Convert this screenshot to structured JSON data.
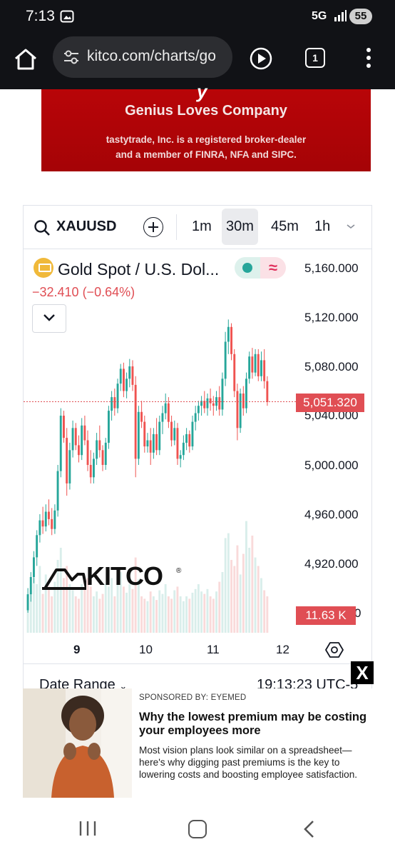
{
  "status_bar": {
    "time": "7:13",
    "network": "5G",
    "battery": "55"
  },
  "browser": {
    "url": "kitco.com/charts/go",
    "tab_count": "1"
  },
  "ad_banner": {
    "brand_fragment": "y",
    "headline": "Genius Loves Company",
    "line1": "tastytrade, Inc. is a registered broker-dealer",
    "line2": "and a member of FINRA, NFA and SIPC."
  },
  "chart_widget": {
    "symbol": "XAUUSD",
    "timeframes": [
      "1m",
      "30m",
      "45m",
      "1h"
    ],
    "active_timeframe": "30m",
    "instrument": "Gold Spot / U.S. Dol...",
    "change": "−32.410 (−0.64%)",
    "current_price": "5,051.320",
    "volume_badge": "11.63 K",
    "watermark": "KITCO",
    "date_range_label": "Date Range",
    "timestamp": "19:13:23 UTC-5"
  },
  "chart_data": {
    "type": "candlestick",
    "y_ticks": [
      "5,160.000",
      "5,120.000",
      "5,080.000",
      "5,040.000",
      "5,000.000",
      "4,960.000",
      "4,920.000",
      "4,880.000"
    ],
    "visible_partial_tick": "0",
    "ylim": [
      4880,
      5160
    ],
    "x_ticks": [
      "9",
      "10",
      "11",
      "12"
    ],
    "current_price": 5051.32,
    "colors": {
      "up": "#26a69a",
      "down": "#ef5350",
      "price_line": "#e04e54"
    },
    "candles": [
      {
        "o": 4882,
        "h": 4900,
        "l": 4880,
        "c": 4895
      },
      {
        "o": 4895,
        "h": 4913,
        "l": 4889,
        "c": 4909
      },
      {
        "o": 4909,
        "h": 4930,
        "l": 4904,
        "c": 4925
      },
      {
        "o": 4925,
        "h": 4947,
        "l": 4918,
        "c": 4943
      },
      {
        "o": 4943,
        "h": 4960,
        "l": 4937,
        "c": 4955
      },
      {
        "o": 4955,
        "h": 4966,
        "l": 4944,
        "c": 4950
      },
      {
        "o": 4950,
        "h": 4968,
        "l": 4946,
        "c": 4962
      },
      {
        "o": 4962,
        "h": 4972,
        "l": 4951,
        "c": 4956
      },
      {
        "o": 4956,
        "h": 4965,
        "l": 4943,
        "c": 4948
      },
      {
        "o": 4948,
        "h": 4968,
        "l": 4944,
        "c": 4963
      },
      {
        "o": 4963,
        "h": 5000,
        "l": 4958,
        "c": 4995
      },
      {
        "o": 4995,
        "h": 5046,
        "l": 4990,
        "c": 5040
      },
      {
        "o": 5040,
        "h": 5044,
        "l": 5018,
        "c": 5022
      },
      {
        "o": 5022,
        "h": 5030,
        "l": 4975,
        "c": 4985
      },
      {
        "o": 4985,
        "h": 5018,
        "l": 4980,
        "c": 5012
      },
      {
        "o": 5012,
        "h": 5036,
        "l": 5006,
        "c": 5030
      },
      {
        "o": 5030,
        "h": 5034,
        "l": 5012,
        "c": 5016
      },
      {
        "o": 5016,
        "h": 5024,
        "l": 5002,
        "c": 5008
      },
      {
        "o": 5008,
        "h": 5038,
        "l": 5004,
        "c": 5032
      },
      {
        "o": 5032,
        "h": 5040,
        "l": 5016,
        "c": 5020
      },
      {
        "o": 5020,
        "h": 5028,
        "l": 4995,
        "c": 5000
      },
      {
        "o": 5000,
        "h": 5012,
        "l": 4985,
        "c": 4990
      },
      {
        "o": 4990,
        "h": 5010,
        "l": 4985,
        "c": 5005
      },
      {
        "o": 5005,
        "h": 5026,
        "l": 5000,
        "c": 5020
      },
      {
        "o": 5020,
        "h": 5032,
        "l": 5006,
        "c": 5012
      },
      {
        "o": 5012,
        "h": 5016,
        "l": 4995,
        "c": 5000
      },
      {
        "o": 5000,
        "h": 5022,
        "l": 4996,
        "c": 5018
      },
      {
        "o": 5018,
        "h": 5048,
        "l": 5013,
        "c": 5044
      },
      {
        "o": 5044,
        "h": 5060,
        "l": 5036,
        "c": 5055
      },
      {
        "o": 5055,
        "h": 5062,
        "l": 5040,
        "c": 5046
      },
      {
        "o": 5046,
        "h": 5070,
        "l": 5042,
        "c": 5066
      },
      {
        "o": 5066,
        "h": 5082,
        "l": 5060,
        "c": 5078
      },
      {
        "o": 5078,
        "h": 5083,
        "l": 5055,
        "c": 5060
      },
      {
        "o": 5060,
        "h": 5075,
        "l": 5054,
        "c": 5070
      },
      {
        "o": 5070,
        "h": 5086,
        "l": 5063,
        "c": 5080
      },
      {
        "o": 5080,
        "h": 5085,
        "l": 5060,
        "c": 5065
      },
      {
        "o": 5065,
        "h": 5072,
        "l": 4990,
        "c": 5005
      },
      {
        "o": 5005,
        "h": 5048,
        "l": 5000,
        "c": 5043
      },
      {
        "o": 5043,
        "h": 5052,
        "l": 5030,
        "c": 5035
      },
      {
        "o": 5035,
        "h": 5040,
        "l": 5010,
        "c": 5015
      },
      {
        "o": 5015,
        "h": 5026,
        "l": 5010,
        "c": 5020
      },
      {
        "o": 5020,
        "h": 5030,
        "l": 5000,
        "c": 5010
      },
      {
        "o": 5010,
        "h": 5030,
        "l": 5005,
        "c": 5025
      },
      {
        "o": 5025,
        "h": 5038,
        "l": 5008,
        "c": 5012
      },
      {
        "o": 5012,
        "h": 5040,
        "l": 5008,
        "c": 5035
      },
      {
        "o": 5035,
        "h": 5048,
        "l": 5025,
        "c": 5042
      },
      {
        "o": 5042,
        "h": 5058,
        "l": 5037,
        "c": 5050
      },
      {
        "o": 5050,
        "h": 5055,
        "l": 5030,
        "c": 5035
      },
      {
        "o": 5035,
        "h": 5040,
        "l": 5015,
        "c": 5020
      },
      {
        "o": 5020,
        "h": 5036,
        "l": 5016,
        "c": 5030
      },
      {
        "o": 5030,
        "h": 5034,
        "l": 5000,
        "c": 5005
      },
      {
        "o": 5005,
        "h": 5012,
        "l": 4998,
        "c": 5008
      },
      {
        "o": 5008,
        "h": 5024,
        "l": 5004,
        "c": 5018
      },
      {
        "o": 5018,
        "h": 5030,
        "l": 5012,
        "c": 5025
      },
      {
        "o": 5025,
        "h": 5028,
        "l": 5010,
        "c": 5015
      },
      {
        "o": 5015,
        "h": 5040,
        "l": 5012,
        "c": 5035
      },
      {
        "o": 5035,
        "h": 5048,
        "l": 5028,
        "c": 5042
      },
      {
        "o": 5042,
        "h": 5052,
        "l": 5036,
        "c": 5048
      },
      {
        "o": 5048,
        "h": 5056,
        "l": 5040,
        "c": 5052
      },
      {
        "o": 5052,
        "h": 5060,
        "l": 5042,
        "c": 5046
      },
      {
        "o": 5046,
        "h": 5058,
        "l": 5040,
        "c": 5054
      },
      {
        "o": 5054,
        "h": 5062,
        "l": 5044,
        "c": 5050
      },
      {
        "o": 5050,
        "h": 5056,
        "l": 5040,
        "c": 5048
      },
      {
        "o": 5048,
        "h": 5060,
        "l": 5044,
        "c": 5055
      },
      {
        "o": 5055,
        "h": 5064,
        "l": 5040,
        "c": 5045
      },
      {
        "o": 5045,
        "h": 5075,
        "l": 5040,
        "c": 5070
      },
      {
        "o": 5070,
        "h": 5108,
        "l": 5064,
        "c": 5100
      },
      {
        "o": 5100,
        "h": 5118,
        "l": 5090,
        "c": 5112
      },
      {
        "o": 5112,
        "h": 5115,
        "l": 5085,
        "c": 5090
      },
      {
        "o": 5090,
        "h": 5094,
        "l": 5055,
        "c": 5060
      },
      {
        "o": 5060,
        "h": 5066,
        "l": 5020,
        "c": 5030
      },
      {
        "o": 5030,
        "h": 5062,
        "l": 5026,
        "c": 5058
      },
      {
        "o": 5058,
        "h": 5064,
        "l": 5040,
        "c": 5046
      },
      {
        "o": 5046,
        "h": 5075,
        "l": 5042,
        "c": 5070
      },
      {
        "o": 5070,
        "h": 5092,
        "l": 5066,
        "c": 5088
      },
      {
        "o": 5088,
        "h": 5095,
        "l": 5070,
        "c": 5075
      },
      {
        "o": 5075,
        "h": 5094,
        "l": 5072,
        "c": 5090
      },
      {
        "o": 5090,
        "h": 5094,
        "l": 5068,
        "c": 5072
      },
      {
        "o": 5072,
        "h": 5092,
        "l": 5068,
        "c": 5085
      },
      {
        "o": 5085,
        "h": 5094,
        "l": 5062,
        "c": 5068
      },
      {
        "o": 5068,
        "h": 5072,
        "l": 5048,
        "c": 5051
      }
    ],
    "volumes": [
      0.3,
      0.35,
      0.45,
      0.4,
      0.55,
      0.32,
      0.48,
      0.38,
      0.3,
      0.42,
      0.6,
      0.7,
      0.45,
      0.55,
      0.4,
      0.35,
      0.3,
      0.28,
      0.4,
      0.36,
      0.45,
      0.38,
      0.3,
      0.34,
      0.28,
      0.32,
      0.4,
      0.38,
      0.45,
      0.3,
      0.42,
      0.5,
      0.38,
      0.33,
      0.4,
      0.36,
      0.62,
      0.44,
      0.3,
      0.28,
      0.26,
      0.34,
      0.3,
      0.27,
      0.35,
      0.32,
      0.4,
      0.3,
      0.28,
      0.35,
      0.38,
      0.3,
      0.26,
      0.3,
      0.28,
      0.33,
      0.36,
      0.4,
      0.34,
      0.32,
      0.36,
      0.3,
      0.28,
      0.34,
      0.42,
      0.5,
      0.78,
      0.82,
      0.6,
      0.55,
      0.72,
      0.48,
      0.65,
      0.92,
      0.7,
      0.8,
      0.62,
      0.55,
      0.45,
      0.35,
      0.3
    ]
  },
  "sponsored": {
    "label": "SPONSORED BY: EYEMED",
    "title": "Why the lowest premium may be costing your employees more",
    "body": "Most vision plans look similar on a spreadsheet—here's why digging past premiums is the key to lowering costs and boosting employee satisfaction.",
    "close": "X"
  }
}
